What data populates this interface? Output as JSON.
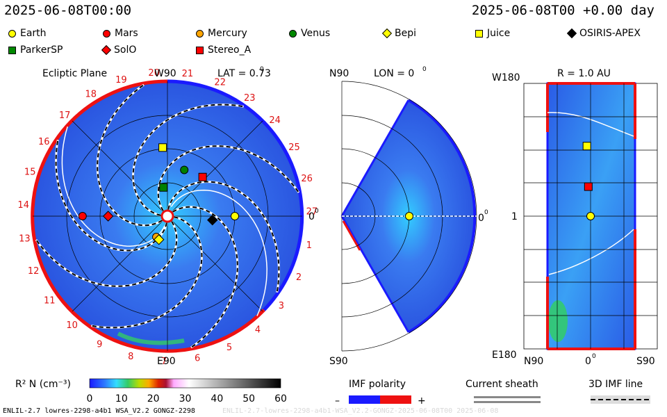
{
  "header": {
    "left_time": "2025-06-08T00:00",
    "right_time": "2025-06-08T00 +0.00 day"
  },
  "legend": [
    {
      "name": "Earth",
      "shape": "circle",
      "color": "#ffff00"
    },
    {
      "name": "Mars",
      "shape": "circle",
      "color": "#ff0000"
    },
    {
      "name": "Mercury",
      "shape": "circle",
      "color": "#ffa500"
    },
    {
      "name": "Venus",
      "shape": "circle",
      "color": "#008000"
    },
    {
      "name": "Bepi",
      "shape": "diamond",
      "color": "#ffff00"
    },
    {
      "name": "Juice",
      "shape": "square",
      "color": "#ffff00"
    },
    {
      "name": "OSIRIS-APEX",
      "shape": "diamond",
      "color": "#000000"
    },
    {
      "name": "ParkerSP",
      "shape": "square",
      "color": "#008000"
    },
    {
      "name": "SolO",
      "shape": "diamond",
      "color": "#ff0000"
    },
    {
      "name": "Stereo_A",
      "shape": "square",
      "color": "#ff0000"
    }
  ],
  "chart_data": [
    {
      "type": "polar",
      "title": "Ecliptic Plane",
      "subtitle": "LAT = 0.73",
      "top_label": "W90",
      "bottom_label": "E90",
      "right_label": "0",
      "longitude_ticks": [
        "1",
        "2",
        "3",
        "4",
        "5",
        "6",
        "7",
        "8",
        "9",
        "10",
        "11",
        "12",
        "13",
        "14",
        "15",
        "16",
        "17",
        "18",
        "19",
        "20",
        "21",
        "22",
        "23",
        "24",
        "25",
        "26",
        "27"
      ],
      "bodies": [
        {
          "name": "Earth",
          "r_au": 1.0,
          "lon_deg": 0
        },
        {
          "name": "Mars",
          "r_au": 1.26,
          "lon_deg": 180
        },
        {
          "name": "Mercury",
          "r_au": 0.35,
          "lon_deg": 242
        },
        {
          "name": "Venus",
          "r_au": 0.73,
          "lon_deg": 70
        },
        {
          "name": "Bepi",
          "r_au": 0.37,
          "lon_deg": 250
        },
        {
          "name": "Juice",
          "r_au": 1.02,
          "lon_deg": 94
        },
        {
          "name": "OSIRIS-APEX",
          "r_au": 0.67,
          "lon_deg": 355
        },
        {
          "name": "ParkerSP",
          "r_au": 0.43,
          "lon_deg": 98
        },
        {
          "name": "SolO",
          "r_au": 0.88,
          "lon_deg": 180
        },
        {
          "name": "Stereo_A",
          "r_au": 0.78,
          "lon_deg": 48
        }
      ]
    },
    {
      "type": "meridional",
      "title": "LON = 0",
      "top_label": "N90",
      "bottom_label": "S90",
      "right_label": "0",
      "bodies": [
        {
          "name": "Earth",
          "r_au": 1.0,
          "lat_deg": 0
        }
      ]
    },
    {
      "type": "heatmap",
      "title": "R = 1.0 AU",
      "ylabel_top": "W180",
      "ylabel_mid": "1",
      "ylabel_bottom": "E180",
      "xlabels": [
        "N90",
        "0",
        "S90"
      ],
      "bodies": [
        {
          "name": "Juice",
          "lat_deg": 5,
          "lon_deg": 95
        },
        {
          "name": "Stereo_A",
          "lat_deg": 3,
          "lon_deg": 40
        },
        {
          "name": "Earth",
          "lat_deg": 0,
          "lon_deg": 0
        }
      ]
    }
  ],
  "colorbar": {
    "label": "R² N (cm⁻³)",
    "ticks": [
      "0",
      "10",
      "20",
      "30",
      "40",
      "50",
      "60"
    ]
  },
  "imf_legend": {
    "polarity_title": "IMF polarity",
    "minus": "–",
    "plus": "+",
    "sheath_title": "Current sheath",
    "line_title": "3D IMF line"
  },
  "footer": {
    "left": "ENLIL-2.7 lowres-2298-a4b1 WSA_V2.2 GONGZ-2298",
    "right": "ENLIL-2.7-lowres-2298-a4b1-WSA_V2.2-GONGZ-2025-06-08T00   2025-06-08"
  }
}
